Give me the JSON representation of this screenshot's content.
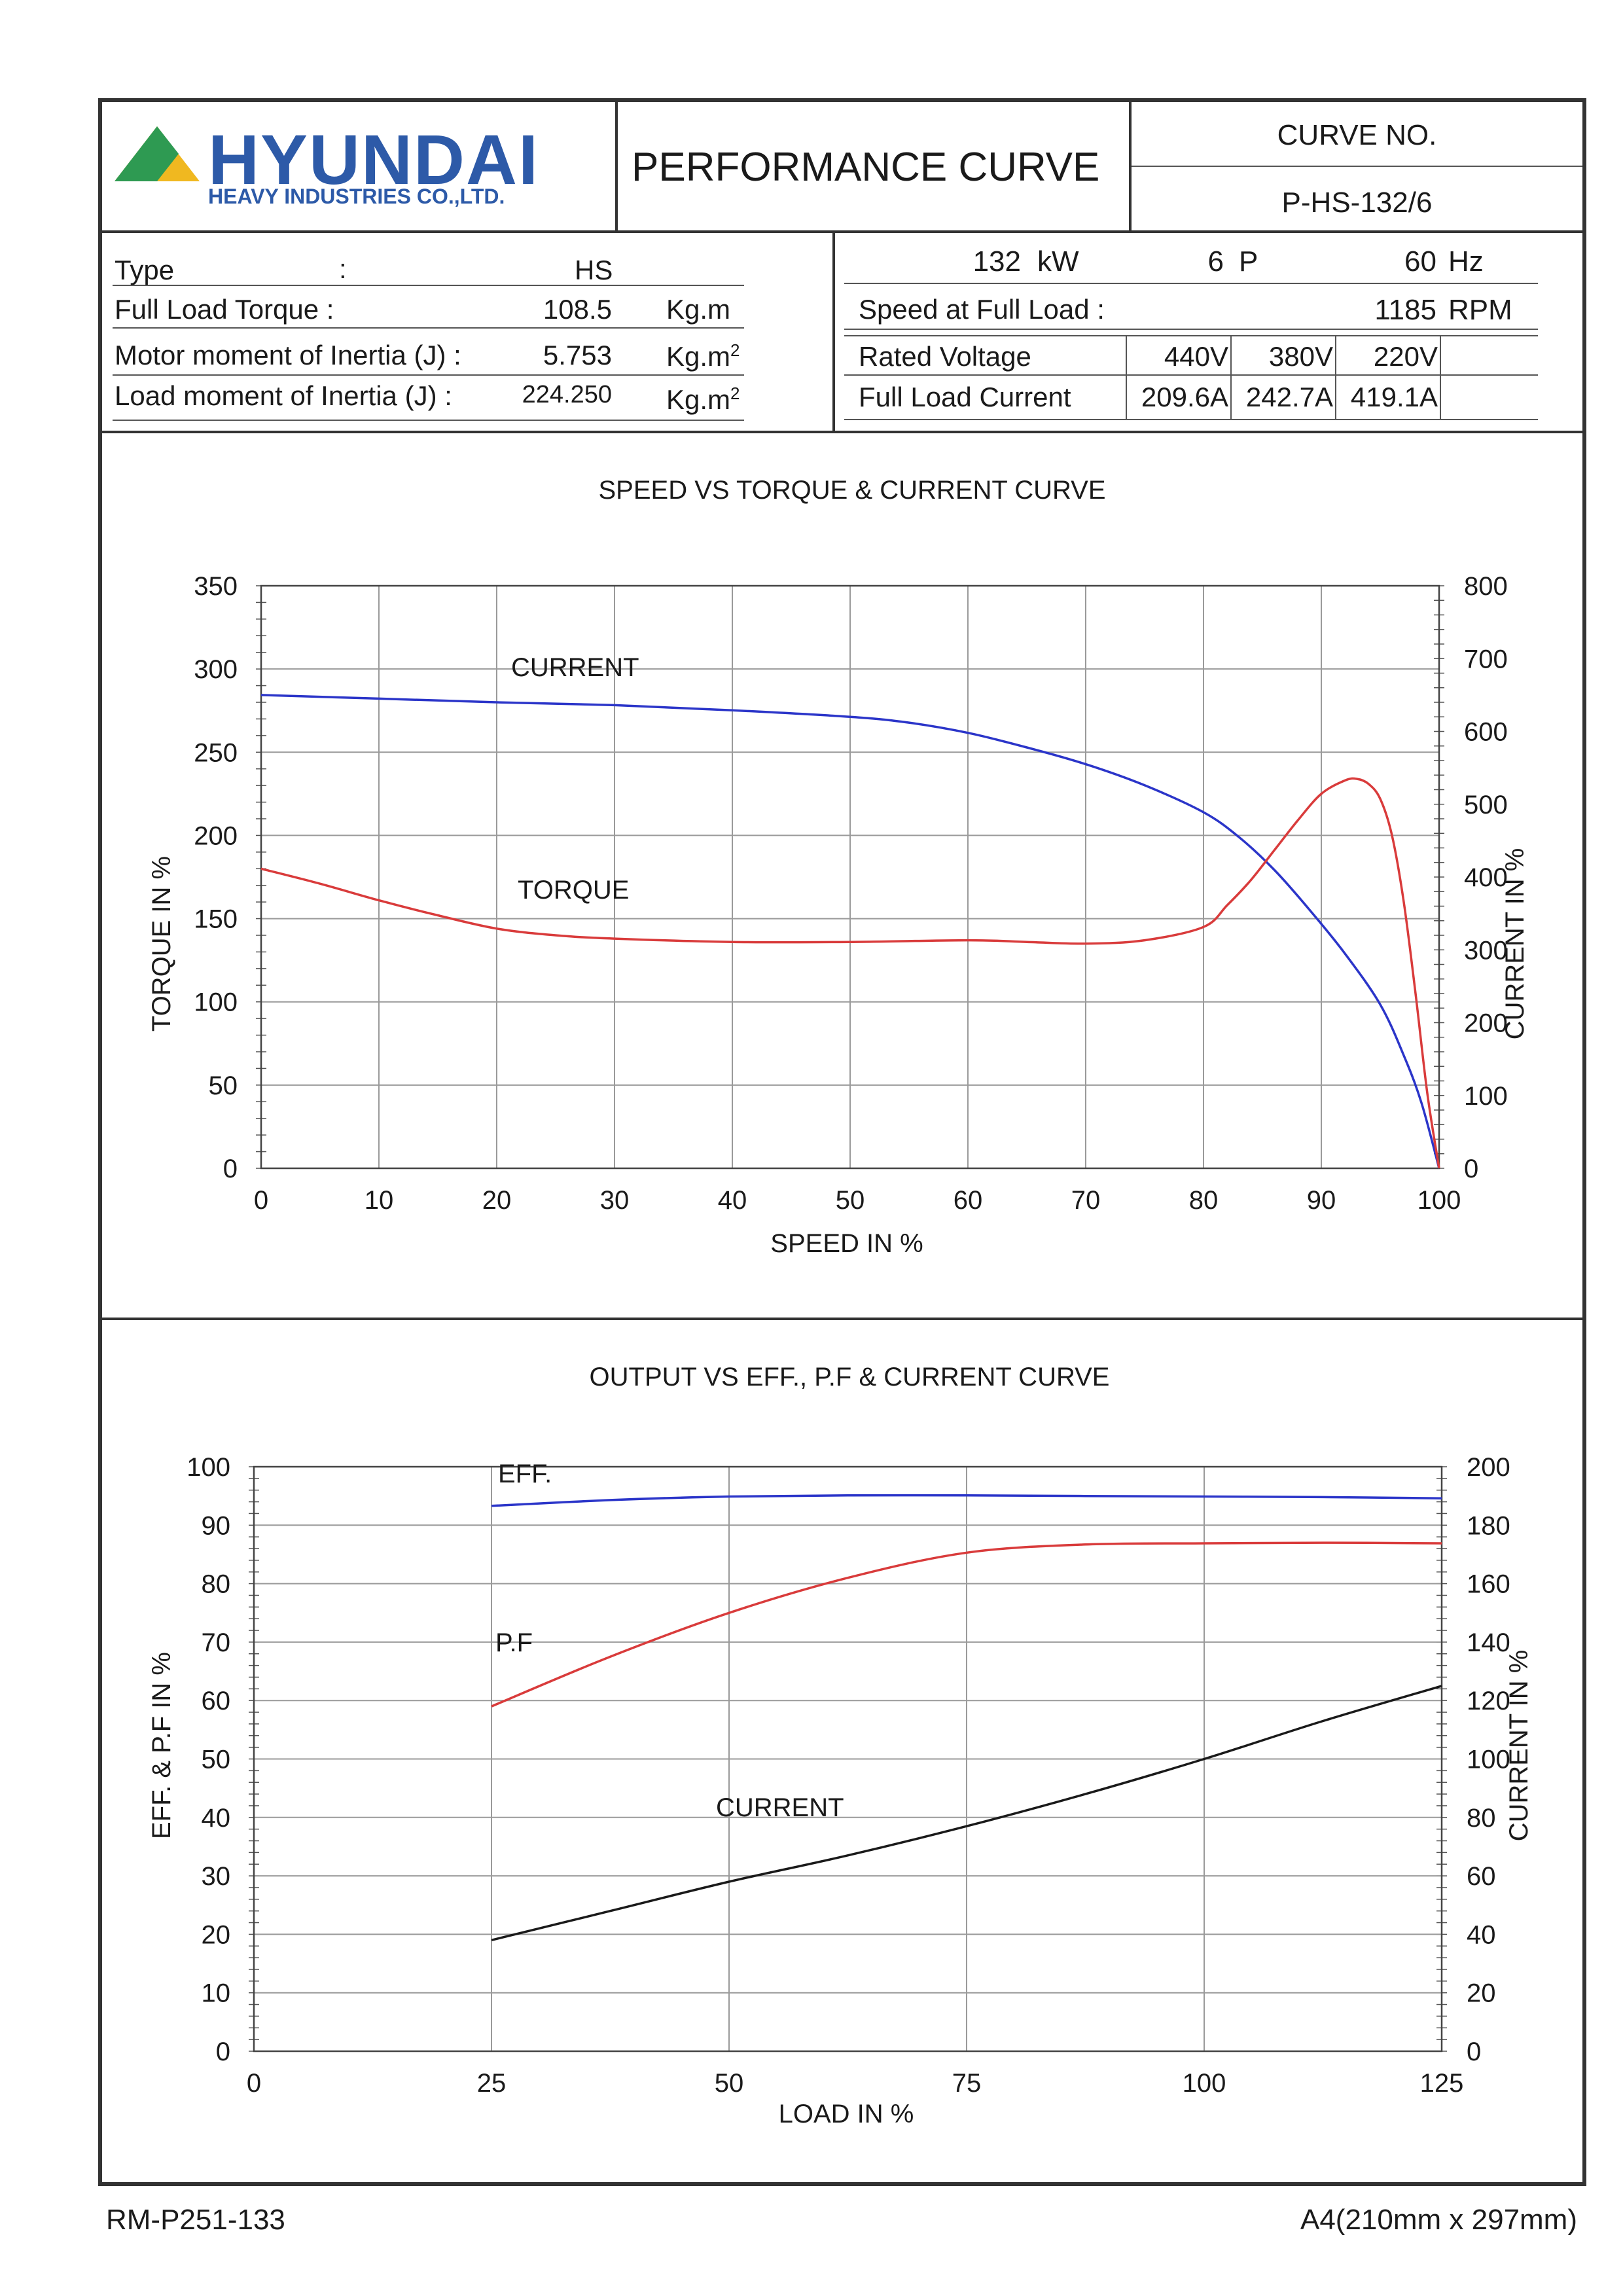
{
  "header": {
    "logo_brand": "HYUNDAI",
    "logo_sub": "HEAVY INDUSTRIES CO.,LTD.",
    "title": "PERFORMANCE CURVE",
    "curve_no_label": "CURVE NO.",
    "curve_no": "P-HS-132/6"
  },
  "specs_left": {
    "type_label": "Type",
    "type_colon": ":",
    "type_value": "HS",
    "torque_label": "Full Load Torque :",
    "torque_value": "108.5",
    "torque_unit": "Kg.m",
    "motor_inertia_label": "Motor moment of Inertia (J) :",
    "motor_inertia_value": "5.753",
    "motor_inertia_unit": "Kg.m",
    "load_inertia_label": "Load moment of Inertia (J) :",
    "load_inertia_value": "224.250",
    "load_inertia_unit": "Kg.m",
    "unit_sup": "2"
  },
  "specs_right": {
    "power_value": "132",
    "power_unit": "kW",
    "poles_value": "6",
    "poles_unit": "P",
    "freq_value": "60",
    "freq_unit": "Hz",
    "speed_label": "Speed at Full Load :",
    "speed_value": "1185",
    "speed_unit": "RPM",
    "voltage_label": "Rated Voltage",
    "voltages": [
      "440V",
      "380V",
      "220V"
    ],
    "current_label": "Full Load Current",
    "currents": [
      "209.6A",
      "242.7A",
      "419.1A"
    ]
  },
  "footer": {
    "doc_no": "RM-P251-133",
    "paper": "A4(210mm x 297mm)"
  },
  "colors": {
    "blue": "#2b35c9",
    "red": "#d93b3b",
    "black": "#1a1a1a",
    "grid": "#9a9a9a",
    "frame": "#333333"
  },
  "chart_data": [
    {
      "type": "line",
      "title": "SPEED VS TORQUE & CURRENT CURVE",
      "xlabel": "SPEED IN %",
      "ylabel": "TORQUE IN %",
      "y2label": "CURRENT IN %",
      "xlim": [
        0,
        100
      ],
      "ylim": [
        0,
        350
      ],
      "y2lim": [
        0,
        800
      ],
      "xticks": [
        0,
        10,
        20,
        30,
        40,
        50,
        60,
        70,
        80,
        90,
        100
      ],
      "yticks": [
        0,
        50,
        100,
        150,
        200,
        250,
        300,
        350
      ],
      "y2ticks": [
        0,
        100,
        200,
        300,
        400,
        500,
        600,
        700,
        800
      ],
      "grid": true,
      "series": [
        {
          "name": "CURRENT",
          "axis": "right",
          "color": "blue",
          "x": [
            0,
            10,
            20,
            30,
            40,
            50,
            55,
            60,
            65,
            70,
            75,
            80,
            83,
            86,
            89,
            92,
            95,
            97,
            98.5,
            100
          ],
          "y": [
            650,
            645,
            640,
            636,
            629,
            620,
            612,
            598,
            578,
            555,
            526,
            489,
            455,
            410,
            355,
            295,
            225,
            155,
            90,
            0
          ]
        },
        {
          "name": "TORQUE",
          "axis": "left",
          "color": "red",
          "x": [
            0,
            5,
            10,
            15,
            20,
            25,
            30,
            40,
            50,
            60,
            65,
            70,
            75,
            80,
            82,
            84,
            86,
            88,
            90,
            92,
            93,
            94,
            95,
            96,
            97,
            98,
            99,
            100
          ],
          "y": [
            180,
            171,
            161,
            152,
            144,
            140,
            138,
            136,
            136,
            137,
            136,
            135,
            137,
            145,
            158,
            173,
            191,
            209,
            225,
            233,
            234,
            231,
            222,
            200,
            160,
            105,
            45,
            0
          ]
        }
      ]
    },
    {
      "type": "line",
      "title": "OUTPUT VS EFF., P.F & CURRENT CURVE",
      "xlabel": "LOAD IN %",
      "ylabel": "EFF. & P.F IN %",
      "y2label": "CURRENT IN %",
      "xlim": [
        0,
        125
      ],
      "ylim": [
        0,
        100
      ],
      "y2lim": [
        0,
        200
      ],
      "xticks": [
        0,
        25,
        50,
        75,
        100,
        125
      ],
      "yticks": [
        0,
        10,
        20,
        30,
        40,
        50,
        60,
        70,
        80,
        90,
        100
      ],
      "y2ticks": [
        0,
        20,
        40,
        60,
        80,
        100,
        120,
        140,
        160,
        180,
        200
      ],
      "grid": true,
      "series": [
        {
          "name": "EFF.",
          "axis": "left",
          "color": "blue",
          "x": [
            25,
            37.5,
            50,
            62.5,
            75,
            87.5,
            100,
            112.5,
            125
          ],
          "y": [
            93.3,
            94.3,
            94.9,
            95.1,
            95.1,
            95.0,
            94.9,
            94.8,
            94.6
          ]
        },
        {
          "name": "P.F",
          "axis": "left",
          "color": "red",
          "x": [
            25,
            37.5,
            50,
            62.5,
            75,
            87.5,
            100,
            112.5,
            125
          ],
          "y": [
            59,
            67.5,
            75,
            81,
            85.3,
            86.7,
            86.9,
            87.0,
            86.9
          ]
        },
        {
          "name": "CURRENT",
          "axis": "right",
          "color": "black",
          "x": [
            25,
            37.5,
            50,
            62.5,
            75,
            87.5,
            100,
            112.5,
            125
          ],
          "y": [
            38,
            48,
            58,
            67,
            77,
            88,
            100,
            113,
            125
          ]
        }
      ]
    }
  ]
}
